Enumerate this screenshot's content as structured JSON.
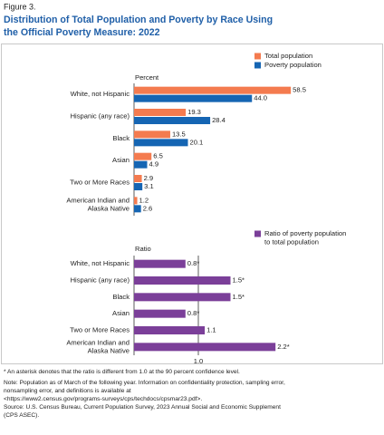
{
  "figure_label": "Figure 3.",
  "title": [
    "Distribution of Total Population and Poverty by Race Using",
    "the Official Poverty Measure: 2022"
  ],
  "chart_data": [
    {
      "type": "hbar",
      "axis_title": "Percent",
      "legend": "top-right",
      "categories": [
        "White, not Hispanic",
        "Hispanic (any race)",
        "Black",
        "Asian",
        "Two or More Races",
        "American Indian and Alaska Native"
      ],
      "xlim": [
        0,
        80
      ],
      "series": [
        {
          "name": "Total population",
          "color": "#f47b4f",
          "values": [
            58.5,
            19.3,
            13.5,
            6.5,
            2.9,
            1.2
          ],
          "value_labels": [
            "58.5",
            "19.3",
            "13.5",
            "6.5",
            "2.9",
            "1.2"
          ]
        },
        {
          "name": "Poverty population",
          "color": "#1565b3",
          "values": [
            44.0,
            28.4,
            20.1,
            4.9,
            3.1,
            2.6
          ],
          "value_labels": [
            "44.0",
            "28.4",
            "20.1",
            "4.9",
            "3.1",
            "2.6"
          ]
        }
      ]
    },
    {
      "type": "hbar",
      "axis_title": "Ratio",
      "legend": "top-right",
      "categories": [
        "White, not Hispanic",
        "Hispanic (any race)",
        "Black",
        "Asian",
        "Two or More Races",
        "American Indian and Alaska Native"
      ],
      "xlim": [
        0,
        3.2
      ],
      "xticks": [
        {
          "value": 1,
          "label": "1.0"
        }
      ],
      "series": [
        {
          "name": "Ratio of poverty population to total population",
          "color": "#7b3f99",
          "values": [
            0.8,
            1.5,
            1.5,
            0.8,
            1.1,
            2.2
          ],
          "value_labels": [
            "0.8*",
            "1.5*",
            "1.5*",
            "0.8*",
            "1.1",
            "2.2*"
          ]
        }
      ]
    }
  ],
  "notes": [
    "* An asterisk denotes that the ratio is different from 1.0 at the 90 percent confidence level.",
    "Note: Population as of March of the following year. Information on confidentiality protection, sampling error,",
    "nonsampling error, and definitions is available at",
    "<https://www2.census.gov/programs-surveys/cps/techdocs/cpsmar23.pdf>.",
    "Source: U.S. Census Bureau, Current Population Survey, 2023 Annual Social and Economic Supplement",
    "(CPS ASEC)."
  ]
}
